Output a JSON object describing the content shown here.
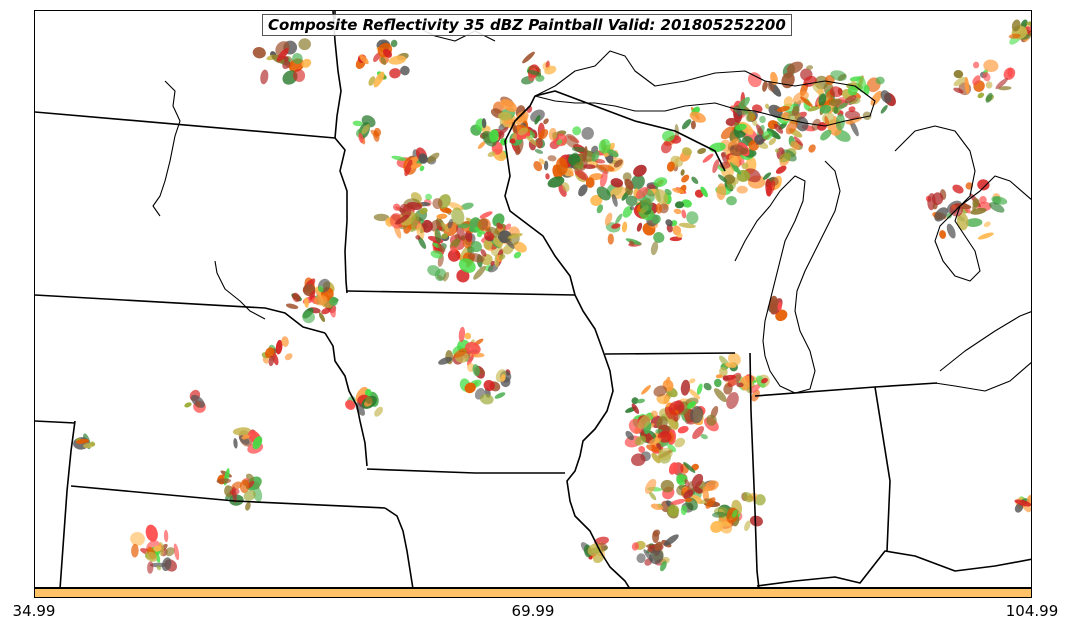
{
  "map": {
    "title": "Composite Reflectivity 35 dBZ Paintball Valid: 201805252200",
    "product": "Composite Reflectivity",
    "threshold_dbz": 35,
    "valid_time": "201805252200",
    "region": "Upper Midwest / Great Lakes",
    "member_colors": [
      "#ff4d4d",
      "#ff9a3c",
      "#ffb74d",
      "#d62020",
      "#b22a2a",
      "#2e7d32",
      "#4caf50",
      "#44dd44",
      "#9aa832",
      "#c4b44a",
      "#8a7a2a",
      "#555555",
      "#a0522d",
      "#e65c00"
    ]
  },
  "colorbar": {
    "color": "#ffc266",
    "ticks": [
      "34.99",
      "69.99",
      "104.99"
    ]
  }
}
